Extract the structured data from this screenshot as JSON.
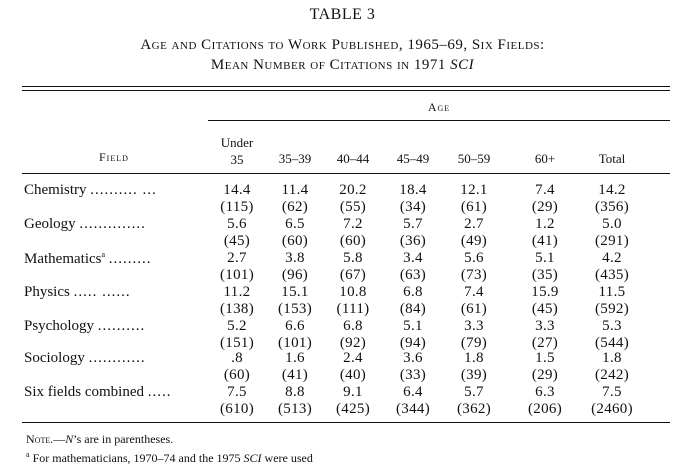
{
  "table_number": "TABLE 3",
  "title_line1": "Age and Citations to Work Published, 1965–69, Six Fields:",
  "title_line2_prefix": "Mean Number of Citations in 1971 ",
  "title_line2_italic": "SCI",
  "age_label": "Age",
  "field_label": "Field",
  "columns": [
    {
      "line1": "Under",
      "line2": "35"
    },
    {
      "line1": "",
      "line2": "35–39"
    },
    {
      "line1": "",
      "line2": "40–44"
    },
    {
      "line1": "",
      "line2": "45–49"
    },
    {
      "line1": "",
      "line2": "50–59"
    },
    {
      "line1": "",
      "line2": "60+"
    },
    {
      "line1": "",
      "line2": "Total"
    }
  ],
  "rows": [
    {
      "field": "Chemistry",
      "leader": ".......... ...",
      "footnote": "",
      "means": [
        "14.4",
        "11.4",
        "20.2",
        "18.4",
        "12.1",
        "7.4",
        "14.2"
      ],
      "n": [
        "(115)",
        "(62)",
        "(55)",
        "(34)",
        "(61)",
        "(29)",
        "(356)"
      ]
    },
    {
      "field": "Geology",
      "leader": "..............",
      "footnote": "",
      "means": [
        "5.6",
        "6.5",
        "7.2",
        "5.7",
        "2.7",
        "1.2",
        "5.0"
      ],
      "n": [
        "(45)",
        "(60)",
        "(60)",
        "(36)",
        "(49)",
        "(41)",
        "(291)"
      ]
    },
    {
      "field": "Mathematics",
      "leader": ".........",
      "footnote": "a",
      "means": [
        "2.7",
        "3.8",
        "5.8",
        "3.4",
        "5.6",
        "5.1",
        "4.2"
      ],
      "n": [
        "(101)",
        "(96)",
        "(67)",
        "(63)",
        "(73)",
        "(35)",
        "(435)"
      ]
    },
    {
      "field": "Physics",
      "leader": "..... ......",
      "footnote": "",
      "means": [
        "11.2",
        "15.1",
        "10.8",
        "6.8",
        "7.4",
        "15.9",
        "11.5"
      ],
      "n": [
        "(138)",
        "(153)",
        "(111)",
        "(84)",
        "(61)",
        "(45)",
        "(592)"
      ]
    },
    {
      "field": "Psychology",
      "leader": "..........",
      "footnote": "",
      "means": [
        "5.2",
        "6.6",
        "6.8",
        "5.1",
        "3.3",
        "3.3",
        "5.3"
      ],
      "n": [
        "(151)",
        "(101)",
        "(92)",
        "(94)",
        "(79)",
        "(27)",
        "(544)"
      ]
    },
    {
      "field": "Sociology",
      "leader": "............",
      "footnote": "",
      "means": [
        ".8",
        "1.6",
        "2.4",
        "3.6",
        "1.8",
        "1.5",
        "1.8"
      ],
      "n": [
        "(60)",
        "(41)",
        "(40)",
        "(33)",
        "(39)",
        "(29)",
        "(242)"
      ]
    },
    {
      "field": "Six fields combined",
      "leader": ".....",
      "footnote": "",
      "means": [
        "7.5",
        "8.8",
        "9.1",
        "6.4",
        "5.7",
        "6.3",
        "7.5"
      ],
      "n": [
        "(610)",
        "(513)",
        "(425)",
        "(344)",
        "(362)",
        "(206)",
        "(2460)"
      ]
    }
  ],
  "note_label": "Note.",
  "note_dash": "—",
  "note_italic": "N",
  "note_rest": "’s are in parentheses.",
  "footnote_marker": "a",
  "footnote_text_prefix": " For mathematicians, 1970–74 and the 1975 ",
  "footnote_italic": "SCI",
  "footnote_text_suffix": " were used"
}
